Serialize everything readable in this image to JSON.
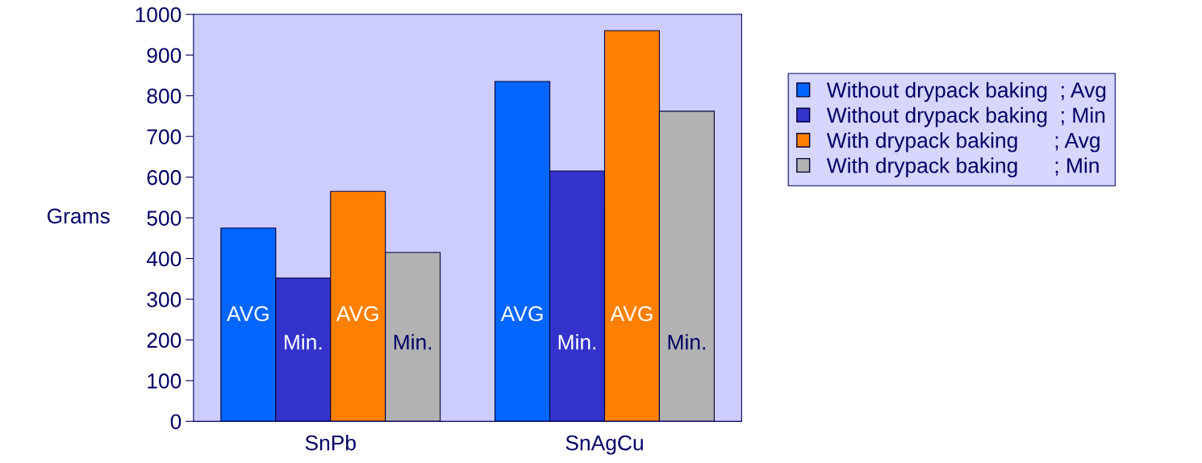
{
  "chart_data": {
    "type": "bar",
    "ylabel": "Grams",
    "categories": [
      "SnPb",
      "SnAgCu"
    ],
    "series": [
      {
        "name": "Without drypack baking  ; Avg",
        "color": "#0066ff",
        "values": [
          475,
          835
        ],
        "value_labels": [
          "AVG",
          "AVG"
        ]
      },
      {
        "name": "Without drypack baking  ; Min",
        "color": "#3333cc",
        "values": [
          352,
          615
        ],
        "value_labels": [
          "Min.",
          "Min."
        ]
      },
      {
        "name": "With drypack baking      ; Avg",
        "color": "#ff8000",
        "values": [
          565,
          960
        ],
        "value_labels": [
          "AVG",
          "AVG"
        ]
      },
      {
        "name": "With drypack baking      ; Min",
        "color": "#b2b2b2",
        "values": [
          415,
          762
        ],
        "value_labels": [
          "Min.",
          "Min."
        ]
      }
    ],
    "ylim": [
      0,
      1000
    ],
    "yticks": [
      0,
      100,
      200,
      300,
      400,
      500,
      600,
      700,
      800,
      900,
      1000
    ],
    "grid": false,
    "legend": "right"
  }
}
